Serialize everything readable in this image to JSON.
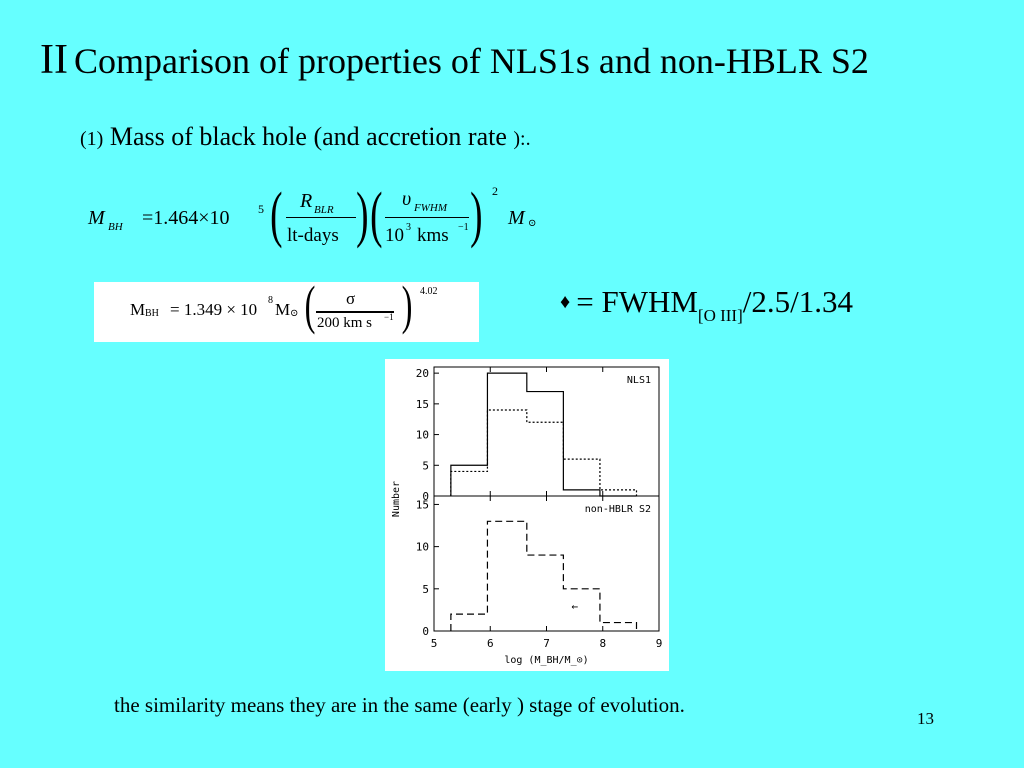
{
  "slide": {
    "title_numeral": "II",
    "title_text": "Comparison of properties of NLS1s and non-HBLR S2",
    "subtitle_prefix": "(1)",
    "subtitle_text": "Mass of black hole (and accretion rate",
    "subtitle_suffix": "):.",
    "fwhm_bullet": "♦",
    "fwhm_eq": "= FWHM",
    "fwhm_sub": "[O III]",
    "fwhm_tail": "/2.5/1.34",
    "footer_text": "the similarity means they are in the same (early ) stage of evolution.",
    "page_number": "13"
  },
  "formula1": {
    "lhs": "M",
    "lhs_sub": "BH",
    "eq": "=1.464×10",
    "exp": "5",
    "num1": "R",
    "num1_sub": "BLR",
    "den1": "lt-days",
    "num2": "υ",
    "num2_sub": "FWHM",
    "den2_a": "10",
    "den2_exp": "3",
    "den2_b": "kms",
    "den2_exp2": "−1",
    "power": "2",
    "rhs": "M",
    "rhs_sub": "⊙"
  },
  "formula2": {
    "lhs": "M",
    "lhs_sub": "BH",
    "eq": "= 1.349 × 10",
    "exp": "8",
    "msun": "M",
    "msun_sub": "⊙",
    "num": "σ",
    "den": "200 km s",
    "den_exp": "−1",
    "power": "4.02"
  },
  "chart_data": {
    "type": "histogram",
    "xlabel": "log (M_BH/M_⊙)",
    "ylabel": "Number",
    "x_ticks": [
      "5",
      "6",
      "7",
      "8",
      "9"
    ],
    "xlim": [
      5,
      9
    ],
    "bin_edges": [
      5.3,
      5.95,
      6.65,
      7.3,
      7.95,
      8.6
    ],
    "panels": [
      {
        "label": "NLS1",
        "ylim": [
          0,
          21
        ],
        "y_ticks": [
          "0",
          "5",
          "10",
          "15",
          "20"
        ],
        "series": [
          {
            "style": "solid",
            "values": [
              5,
              20,
              17,
              1,
              0
            ]
          },
          {
            "style": "dotted",
            "values": [
              4,
              14,
              12,
              6,
              1
            ]
          }
        ]
      },
      {
        "label": "non-HBLR S2",
        "ylim": [
          0,
          16
        ],
        "y_ticks": [
          "0",
          "5",
          "10",
          "15"
        ],
        "series": [
          {
            "style": "dashed",
            "values": [
              2,
              13,
              9,
              5,
              1
            ]
          }
        ],
        "annotation": "←"
      }
    ]
  }
}
